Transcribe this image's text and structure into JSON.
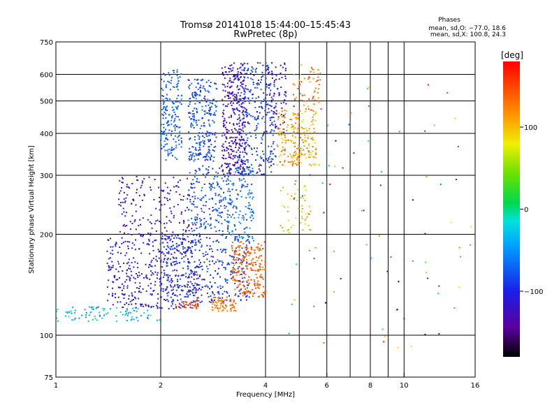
{
  "chart_data": {
    "type": "scatter",
    "title": "Tromsø 20141018 15:44:00–15:45:43",
    "subtitle": "RwPretec (8p)",
    "stats": {
      "heading": "Phases",
      "line1": "mean, sd,O: −77.0, 18.6",
      "line2": "mean, sd,X: 100.8, 24.3"
    },
    "xlabel": "Frequency [MHz]",
    "ylabel": "Stationary phase Virtual Height [km]",
    "x_scale": "log2",
    "y_scale": "log",
    "xlim": [
      1,
      16
    ],
    "ylim": [
      75,
      750
    ],
    "x_ticks": [
      1,
      2,
      4,
      6,
      8,
      10,
      16
    ],
    "x_tick_labels": [
      "1",
      "2",
      "4",
      "6",
      "8",
      "10",
      "16"
    ],
    "y_ticks": [
      75,
      100,
      200,
      300,
      400,
      500,
      600,
      750
    ],
    "y_tick_labels": [
      "75",
      "100",
      "200",
      "300",
      "400",
      "500",
      "600",
      "750"
    ],
    "grid": true,
    "grid_x": [
      2,
      4,
      5,
      6,
      7,
      8,
      9,
      10
    ],
    "grid_y": [
      100,
      200,
      300,
      400,
      500,
      600
    ],
    "colorbar": {
      "label": "[deg]",
      "min": -180,
      "max": 180,
      "ticks": [
        100,
        0,
        -100
      ],
      "tick_labels": [
        "100",
        "0",
        "−100"
      ]
    },
    "clusters": [
      {
        "x": [
          1.0,
          2.0
        ],
        "y": [
          110,
          122
        ],
        "phase": [
          -5,
          -60
        ],
        "count": 90
      },
      {
        "x": [
          1.4,
          2.6
        ],
        "y": [
          120,
          200
        ],
        "phase": [
          -90,
          -130
        ],
        "count": 420
      },
      {
        "x": [
          2.0,
          3.6
        ],
        "y": [
          125,
          200
        ],
        "phase": [
          -70,
          -110
        ],
        "count": 380
      },
      {
        "x": [
          1.5,
          2.5
        ],
        "y": [
          200,
          300
        ],
        "phase": [
          -100,
          -140
        ],
        "count": 160
      },
      {
        "x": [
          2.4,
          3.2
        ],
        "y": [
          200,
          320
        ],
        "phase": [
          -60,
          -100
        ],
        "count": 200
      },
      {
        "x": [
          3.1,
          3.7
        ],
        "y": [
          190,
          320
        ],
        "phase": [
          -40,
          -90
        ],
        "count": 140
      },
      {
        "x": [
          2.0,
          2.3
        ],
        "y": [
          330,
          620
        ],
        "phase": [
          -50,
          -90
        ],
        "count": 180
      },
      {
        "x": [
          2.4,
          2.9
        ],
        "y": [
          330,
          580
        ],
        "phase": [
          -60,
          -100
        ],
        "count": 260
      },
      {
        "x": [
          3.0,
          3.5
        ],
        "y": [
          300,
          650
        ],
        "phase": [
          -110,
          -150
        ],
        "count": 320
      },
      {
        "x": [
          3.3,
          4.3
        ],
        "y": [
          300,
          650
        ],
        "phase": [
          -70,
          -110
        ],
        "count": 300
      },
      {
        "x": [
          4.0,
          4.6
        ],
        "y": [
          400,
          650
        ],
        "phase": [
          -100,
          -140
        ],
        "count": 80
      },
      {
        "x": [
          4.3,
          5.6
        ],
        "y": [
          320,
          470
        ],
        "phase": [
          80,
          140
        ],
        "count": 220
      },
      {
        "x": [
          4.8,
          5.8
        ],
        "y": [
          470,
          640
        ],
        "phase": [
          90,
          160
        ],
        "count": 60
      },
      {
        "x": [
          3.2,
          4.0
        ],
        "y": [
          130,
          190
        ],
        "phase": [
          120,
          160
        ],
        "count": 220
      },
      {
        "x": [
          2.8,
          3.3
        ],
        "y": [
          118,
          130
        ],
        "phase": [
          110,
          150
        ],
        "count": 70
      },
      {
        "x": [
          2.2,
          2.6
        ],
        "y": [
          120,
          127
        ],
        "phase": [
          140,
          165
        ],
        "count": 35
      },
      {
        "x": [
          4.4,
          5.4
        ],
        "y": [
          200,
          280
        ],
        "phase": [
          60,
          120
        ],
        "count": 50
      },
      {
        "x": [
          4.5,
          16
        ],
        "y": [
          90,
          560
        ],
        "phase": [
          -180,
          180
        ],
        "count": 90
      }
    ]
  }
}
